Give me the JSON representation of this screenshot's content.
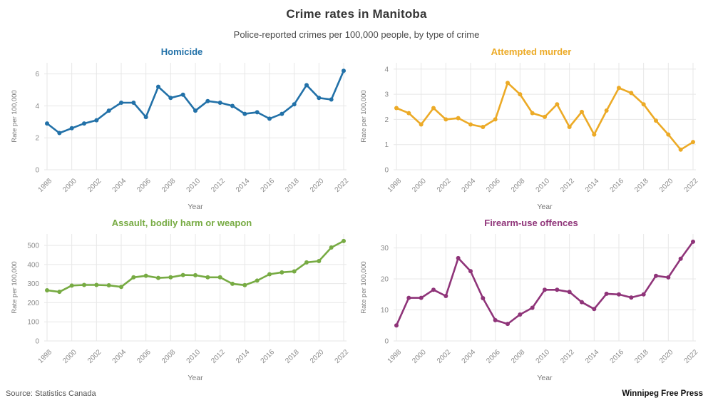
{
  "header": {
    "title": "Crime rates in Manitoba",
    "subtitle": "Police-reported crimes per 100,000 people, by type of crime"
  },
  "footer": {
    "source": "Source: Statistics Canada",
    "credit": "Winnipeg Free Press"
  },
  "theme": {
    "grid_color": "#e7e7e7",
    "tick_label_color": "#8a8a8a",
    "axis_label_color": "#7a7a7a",
    "background": "#ffffff"
  },
  "chart_data": [
    {
      "type": "line",
      "title": "Homicide",
      "color": "#2271a8",
      "xlabel": "Year",
      "ylabel": "Rate per 100,000",
      "x": [
        1998,
        1999,
        2000,
        2001,
        2002,
        2003,
        2004,
        2005,
        2006,
        2007,
        2008,
        2009,
        2010,
        2011,
        2012,
        2013,
        2014,
        2015,
        2016,
        2017,
        2018,
        2019,
        2020,
        2021,
        2022
      ],
      "values": [
        2.9,
        2.3,
        2.6,
        2.9,
        3.1,
        3.7,
        4.2,
        4.2,
        3.3,
        5.2,
        4.5,
        4.7,
        3.7,
        4.3,
        4.2,
        4.0,
        3.5,
        3.6,
        3.2,
        3.5,
        4.1,
        5.3,
        4.5,
        4.4,
        6.2
      ],
      "xticks": [
        1998,
        2000,
        2002,
        2004,
        2006,
        2008,
        2010,
        2012,
        2014,
        2016,
        2018,
        2020,
        2022
      ],
      "yticks": [
        0,
        2,
        4,
        6
      ],
      "ylim": [
        0,
        6.7
      ],
      "grid": true,
      "legend": "none"
    },
    {
      "type": "line",
      "title": "Attempted murder",
      "color": "#ecaa26",
      "xlabel": "Year",
      "ylabel": "Rate per 100,000",
      "x": [
        1998,
        1999,
        2000,
        2001,
        2002,
        2003,
        2004,
        2005,
        2006,
        2007,
        2008,
        2009,
        2010,
        2011,
        2012,
        2013,
        2014,
        2015,
        2016,
        2017,
        2018,
        2019,
        2020,
        2021,
        2022
      ],
      "values": [
        2.45,
        2.25,
        1.8,
        2.45,
        2.0,
        2.05,
        1.8,
        1.7,
        2.0,
        3.45,
        3.0,
        2.25,
        2.1,
        2.6,
        1.7,
        2.3,
        1.4,
        2.35,
        3.25,
        3.05,
        2.6,
        1.95,
        1.4,
        0.8,
        1.1
      ],
      "xticks": [
        1998,
        2000,
        2002,
        2004,
        2006,
        2008,
        2010,
        2012,
        2014,
        2016,
        2018,
        2020,
        2022
      ],
      "yticks": [
        0,
        1,
        2,
        3,
        4
      ],
      "ylim": [
        0,
        4.25
      ],
      "grid": true,
      "legend": "none"
    },
    {
      "type": "line",
      "title": "Assault, bodily harm or weapon",
      "color": "#77ab43",
      "xlabel": "Year",
      "ylabel": "Rate per 100,000",
      "x": [
        1998,
        1999,
        2000,
        2001,
        2002,
        2003,
        2004,
        2005,
        2006,
        2007,
        2008,
        2009,
        2010,
        2011,
        2012,
        2013,
        2014,
        2015,
        2016,
        2017,
        2018,
        2019,
        2020,
        2021,
        2022
      ],
      "values": [
        265,
        257,
        290,
        293,
        293,
        291,
        283,
        333,
        341,
        330,
        333,
        345,
        344,
        333,
        333,
        299,
        292,
        316,
        349,
        359,
        364,
        411,
        418,
        489,
        523
      ],
      "xticks": [
        1998,
        2000,
        2002,
        2004,
        2006,
        2008,
        2010,
        2012,
        2014,
        2016,
        2018,
        2020,
        2022
      ],
      "yticks": [
        0,
        100,
        200,
        300,
        400,
        500
      ],
      "ylim": [
        0,
        560
      ],
      "grid": true,
      "legend": "none"
    },
    {
      "type": "line",
      "title": "Firearm-use offences",
      "color": "#8f3479",
      "xlabel": "Year",
      "ylabel": "Rate per 100,000",
      "x": [
        1998,
        1999,
        2000,
        2001,
        2002,
        2003,
        2004,
        2005,
        2006,
        2007,
        2008,
        2009,
        2010,
        2011,
        2012,
        2013,
        2014,
        2015,
        2016,
        2017,
        2018,
        2019,
        2020,
        2021,
        2022
      ],
      "values": [
        5.0,
        13.9,
        13.9,
        16.5,
        14.5,
        26.7,
        22.5,
        13.8,
        6.7,
        5.5,
        8.5,
        10.7,
        16.5,
        16.5,
        15.8,
        12.5,
        10.3,
        15.2,
        15.0,
        14.0,
        15.0,
        21.0,
        20.5,
        26.5,
        32.0
      ],
      "xticks": [
        1998,
        2000,
        2002,
        2004,
        2006,
        2008,
        2010,
        2012,
        2014,
        2016,
        2018,
        2020,
        2022
      ],
      "yticks": [
        0,
        10,
        20,
        30
      ],
      "ylim": [
        0,
        34.5
      ],
      "grid": true,
      "legend": "none"
    }
  ]
}
